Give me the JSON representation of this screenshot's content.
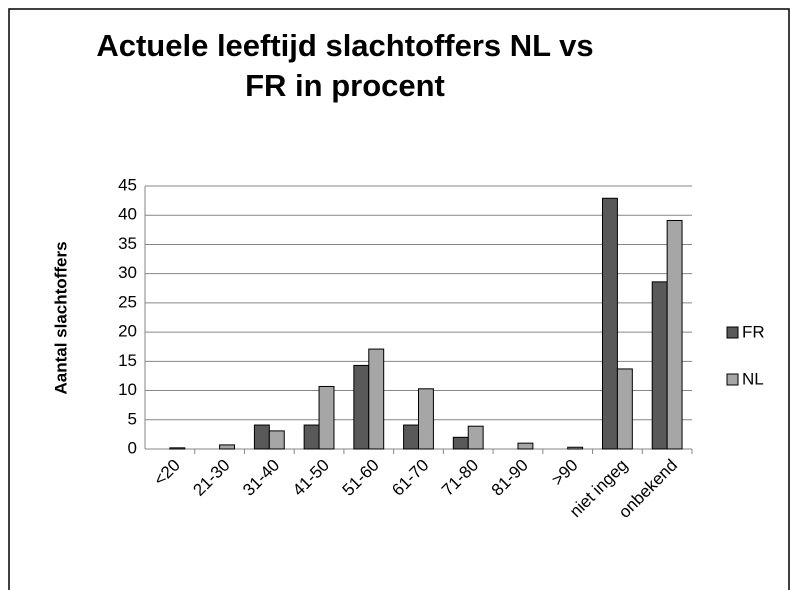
{
  "chart_data": {
    "type": "bar",
    "title": [
      "Actuele leeftijd slachtoffers NL vs",
      "FR in procent"
    ],
    "y_label": "Aantal slachtoffers",
    "categories": [
      "<20",
      "21-30",
      "31-40",
      "41-50",
      "51-60",
      "61-70",
      "71-80",
      "81-90",
      ">90",
      "niet ingeg",
      "onbekend"
    ],
    "series": [
      {
        "name": "FR",
        "color": "#595959",
        "values": [
          0,
          0,
          4.1,
          4.1,
          14.3,
          4.1,
          2.0,
          0,
          0,
          42.9,
          28.6
        ]
      },
      {
        "name": "NL",
        "color": "#a6a6a6",
        "values": [
          0.2,
          0.7,
          3.1,
          10.7,
          17.1,
          10.3,
          3.9,
          1.0,
          0.3,
          13.7,
          39.1
        ]
      }
    ],
    "ylim": [
      0,
      45
    ],
    "yticks": [
      0,
      5,
      10,
      15,
      20,
      25,
      30,
      35,
      40,
      45
    ],
    "grid": true,
    "legend": "right"
  }
}
